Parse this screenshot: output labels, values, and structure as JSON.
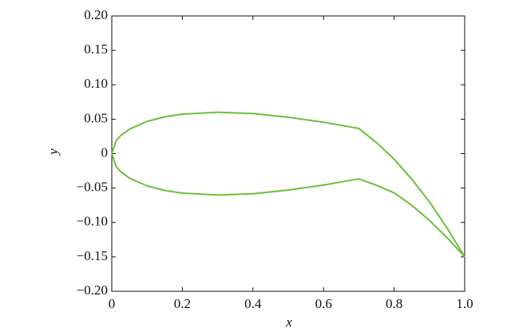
{
  "chart_data": {
    "type": "line",
    "x_label": "x",
    "y_label": "y",
    "xlim": [
      0,
      1.0
    ],
    "ylim": [
      -0.2,
      0.2
    ],
    "xticks": [
      0,
      0.2,
      0.4,
      0.6,
      0.8,
      {
        "value": 1.0,
        "label": "1.0"
      }
    ],
    "yticks": [
      {
        "value": -0.2,
        "label": "−0.20"
      },
      {
        "value": -0.15,
        "label": "−0.15"
      },
      {
        "value": -0.1,
        "label": "−0.10"
      },
      {
        "value": -0.05,
        "label": "−0.05"
      },
      0,
      0.05,
      {
        "value": 0.1,
        "label": "0.10"
      },
      0.15,
      {
        "value": 0.2,
        "label": "0.20"
      }
    ],
    "series": [
      {
        "color": "#6cbf3c",
        "x": [
          0,
          0.0125,
          0.025,
          0.05,
          0.1,
          0.15,
          0.2,
          0.3,
          0.4,
          0.5,
          0.6,
          0.7,
          0.75,
          0.8,
          0.85,
          0.9,
          0.95,
          1.0
        ],
        "values": [
          0,
          0.0189,
          0.0261,
          0.0356,
          0.0468,
          0.0535,
          0.0574,
          0.0601,
          0.0583,
          0.0529,
          0.0456,
          0.0366,
          0.016,
          -0.008,
          -0.037,
          -0.07,
          -0.108,
          -0.15
        ]
      },
      {
        "color": "#6cbf3c",
        "x": [
          0,
          0.0125,
          0.025,
          0.05,
          0.1,
          0.15,
          0.2,
          0.3,
          0.4,
          0.5,
          0.6,
          0.7,
          0.75,
          0.8,
          0.85,
          0.9,
          0.95,
          1.0
        ],
        "values": [
          0,
          -0.0189,
          -0.0261,
          -0.0356,
          -0.0468,
          -0.0535,
          -0.0574,
          -0.0601,
          -0.0583,
          -0.0529,
          -0.0456,
          -0.0366,
          -0.046,
          -0.057,
          -0.075,
          -0.097,
          -0.122,
          -0.15
        ]
      }
    ]
  }
}
